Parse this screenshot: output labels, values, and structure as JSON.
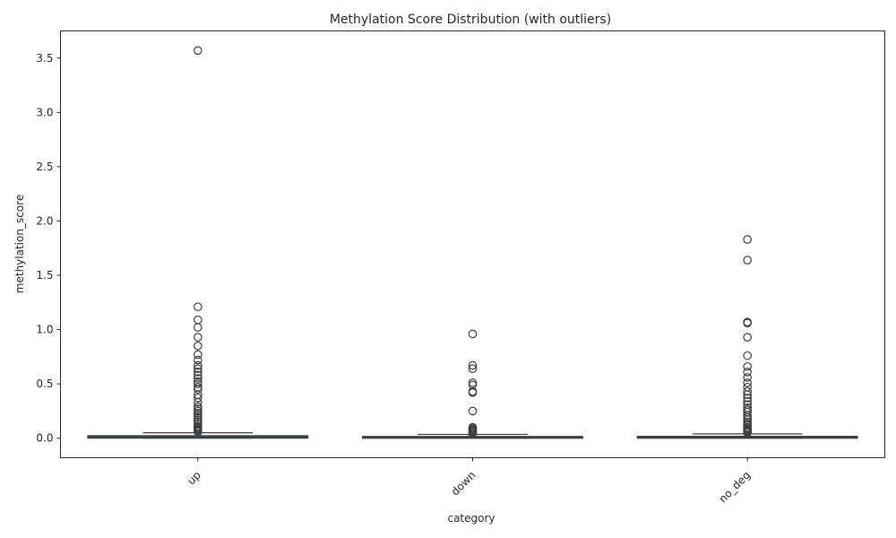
{
  "chart_data": {
    "type": "box",
    "title": "Methylation Score Distribution (with outliers)",
    "xlabel": "category",
    "ylabel": "methylation_score",
    "ylim": [
      -0.18,
      3.75
    ],
    "yticks": [
      "0.0",
      "0.5",
      "1.0",
      "1.5",
      "2.0",
      "2.5",
      "3.0",
      "3.5"
    ],
    "grid": false,
    "categories": [
      "up",
      "down",
      "no_deg"
    ],
    "box_color": "#4c72b0",
    "boxes": [
      {
        "category": "up",
        "q1": 0.002,
        "median": 0.008,
        "q3": 0.022,
        "whisker_low": 0.0,
        "whisker_high": 0.05,
        "outliers": [
          3.57,
          1.21,
          1.09,
          1.02,
          0.93,
          0.85,
          0.77,
          0.72,
          0.67,
          0.64,
          0.61,
          0.58,
          0.55,
          0.52,
          0.5,
          0.47,
          0.45,
          0.4,
          0.37,
          0.33,
          0.29,
          0.27,
          0.25,
          0.23,
          0.21,
          0.19,
          0.17,
          0.15,
          0.13,
          0.11,
          0.1,
          0.09,
          0.08,
          0.07,
          0.06
        ]
      },
      {
        "category": "down",
        "q1": 0.001,
        "median": 0.005,
        "q3": 0.015,
        "whisker_low": 0.0,
        "whisker_high": 0.035,
        "outliers": [
          0.96,
          0.67,
          0.64,
          0.51,
          0.49,
          0.43,
          0.42,
          0.25,
          0.1,
          0.09,
          0.08,
          0.07,
          0.06,
          0.05,
          0.045
        ]
      },
      {
        "category": "no_deg",
        "q1": 0.001,
        "median": 0.005,
        "q3": 0.016,
        "whisker_low": 0.0,
        "whisker_high": 0.04,
        "outliers": [
          1.83,
          1.64,
          1.07,
          1.06,
          0.93,
          0.76,
          0.66,
          0.61,
          0.56,
          0.51,
          0.47,
          0.43,
          0.4,
          0.37,
          0.34,
          0.31,
          0.28,
          0.26,
          0.24,
          0.21,
          0.19,
          0.17,
          0.15,
          0.13,
          0.12,
          0.1,
          0.09,
          0.08,
          0.07,
          0.06,
          0.05
        ]
      }
    ]
  }
}
